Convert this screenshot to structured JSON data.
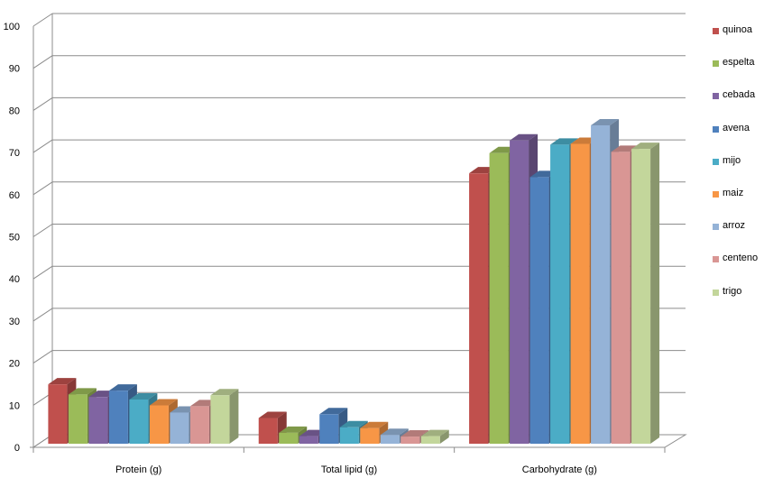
{
  "chart_data": {
    "type": "bar",
    "categories": [
      "Protein (g)",
      "Total lipid (g)",
      "Carbohydrate (g)"
    ],
    "series": [
      {
        "name": "quinoa",
        "color": "#C0504D",
        "values": [
          14.1,
          6.1,
          64.2
        ]
      },
      {
        "name": "espelta",
        "color": "#9BBB59",
        "values": [
          11.7,
          2.6,
          69.0
        ]
      },
      {
        "name": "cebada",
        "color": "#8064A2",
        "values": [
          11.1,
          1.8,
          72.0
        ]
      },
      {
        "name": "avena",
        "color": "#4F81BD",
        "values": [
          12.6,
          7.0,
          63.3
        ]
      },
      {
        "name": "mijo",
        "color": "#4BACC6",
        "values": [
          10.5,
          3.9,
          71.0
        ]
      },
      {
        "name": "maiz",
        "color": "#F79646",
        "values": [
          9.1,
          3.7,
          71.2
        ]
      },
      {
        "name": "arroz",
        "color": "#95B3D7",
        "values": [
          7.4,
          2.1,
          75.6
        ]
      },
      {
        "name": "centeno",
        "color": "#D99694",
        "values": [
          8.9,
          1.7,
          69.3
        ]
      },
      {
        "name": "trigo",
        "color": "#C3D69B",
        "values": [
          11.5,
          1.8,
          70.0
        ]
      }
    ],
    "ylim": [
      0,
      100
    ],
    "yticks": [
      0,
      10,
      20,
      30,
      40,
      50,
      60,
      70,
      80,
      90,
      100
    ],
    "grid": true,
    "legend": "right",
    "style": "3d-clustered-column"
  }
}
